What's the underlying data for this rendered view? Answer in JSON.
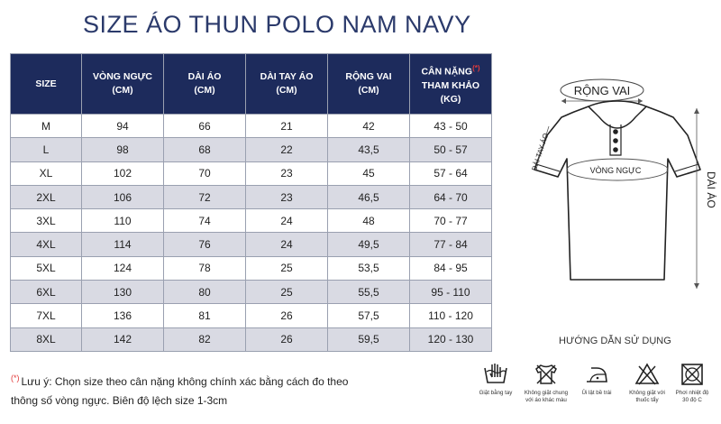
{
  "title": "SIZE ÁO THUN POLO NAM NAVY",
  "headers": [
    {
      "l1": "SIZE",
      "l2": ""
    },
    {
      "l1": "VÒNG NGỰC",
      "l2": "(CM)"
    },
    {
      "l1": "DÀI ÁO",
      "l2": "(CM)"
    },
    {
      "l1": "DÀI TAY ÁO",
      "l2": "(CM)"
    },
    {
      "l1": "RỘNG VAI",
      "l2": "(CM)"
    },
    {
      "l1": "CÂN NẶNG",
      "mark": "(*)",
      "l2": "THAM KHẢO",
      "l3": "(KG)"
    }
  ],
  "rows": [
    [
      "M",
      "94",
      "66",
      "21",
      "42",
      "43 - 50"
    ],
    [
      "L",
      "98",
      "68",
      "22",
      "43,5",
      "50 - 57"
    ],
    [
      "XL",
      "102",
      "70",
      "23",
      "45",
      "57 - 64"
    ],
    [
      "2XL",
      "106",
      "72",
      "23",
      "46,5",
      "64 - 70"
    ],
    [
      "3XL",
      "110",
      "74",
      "24",
      "48",
      "70 - 77"
    ],
    [
      "4XL",
      "114",
      "76",
      "24",
      "49,5",
      "77 - 84"
    ],
    [
      "5XL",
      "124",
      "78",
      "25",
      "53,5",
      "84 - 95"
    ],
    [
      "6XL",
      "130",
      "80",
      "25",
      "55,5",
      "95 - 110"
    ],
    [
      "7XL",
      "136",
      "81",
      "26",
      "57,5",
      "110 - 120"
    ],
    [
      "8XL",
      "142",
      "82",
      "26",
      "59,5",
      "120 - 130"
    ]
  ],
  "diagram": {
    "shoulder": "RỘNG VAI",
    "chest": "VÒNG NGỰC",
    "sleeve": "DÀI TAY ÁO",
    "length": "DÀI ÁO"
  },
  "guide": "HƯỚNG DẪN SỬ DỤNG",
  "note": {
    "mark": "(*)",
    "line1": "Lưu ý: Chọn size theo cân nặng không chính xác bằng cách đo theo",
    "line2": "thông số vòng ngực. Biên độ lệch size 1-3cm"
  },
  "care": [
    {
      "icon": "hand-wash-icon",
      "l1": "Giặt bằng tay",
      "l2": ""
    },
    {
      "icon": "no-wash-with-colors-icon",
      "l1": "Không giặt chung",
      "l2": "với áo khác màu"
    },
    {
      "icon": "iron-low-icon",
      "l1": "Ủi lật bề trái",
      "l2": ""
    },
    {
      "icon": "no-bleach-icon",
      "l1": "Không giặt với",
      "l2": "thuốc tẩy"
    },
    {
      "icon": "no-tumble-dry-icon",
      "l1": "Phơi nhiệt độ",
      "l2": "30 độ C"
    }
  ],
  "colors": {
    "header_bg": "#1d2b5c",
    "title": "#2b3a6b",
    "stripe": "#d9dae3",
    "accent": "#e23b3b"
  }
}
